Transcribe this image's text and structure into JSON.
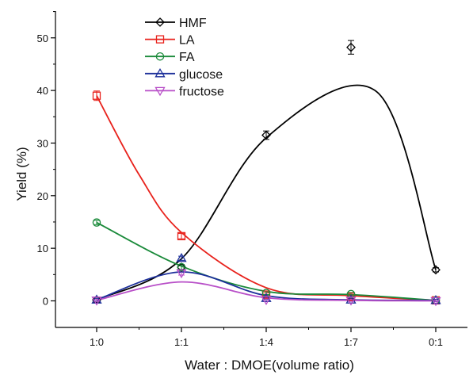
{
  "chart_data": {
    "type": "line",
    "categories": [
      "1:0",
      "1:1",
      "1:4",
      "1:7",
      "0:1"
    ],
    "xlabel": "Water : DMOE(volume ratio)",
    "ylabel": "Yield (%)",
    "ylim": [
      -3,
      55
    ],
    "yticks": [
      0,
      10,
      20,
      30,
      40,
      50
    ],
    "legend_position": "top-center",
    "series": [
      {
        "name": "HMF",
        "color": "#000000",
        "marker": "diamond",
        "values": [
          0.2,
          6.4,
          31.5,
          48.2,
          5.9
        ],
        "errors": [
          0.5,
          0.5,
          0.8,
          1.3,
          0.4
        ],
        "curve_peak": [
          3.3,
          39.8
        ]
      },
      {
        "name": "LA",
        "color": "#e8221c",
        "marker": "square",
        "values": [
          39.0,
          12.3,
          1.2,
          0.8,
          0.1
        ],
        "errors": [
          0.9,
          0.5,
          0.3,
          0.3,
          0.2
        ]
      },
      {
        "name": "FA",
        "color": "#1a8a3a",
        "marker": "circle",
        "values": [
          14.9,
          6.4,
          1.5,
          1.3,
          0.1
        ],
        "errors": [
          0.4,
          0.4,
          0.3,
          0.3,
          0.2
        ]
      },
      {
        "name": "glucose",
        "color": "#1c2f9a",
        "marker": "triangle-up",
        "values": [
          0.2,
          8.1,
          0.5,
          0.2,
          0.1
        ],
        "errors": [
          0.2,
          0.4,
          0.2,
          0.2,
          0.2
        ]
      },
      {
        "name": "fructose",
        "color": "#b84fc8",
        "marker": "triangle-down",
        "values": [
          0.1,
          5.3,
          0.2,
          0.1,
          0.0
        ],
        "errors": [
          0.2,
          0.4,
          0.2,
          0.2,
          0.2
        ]
      }
    ]
  }
}
